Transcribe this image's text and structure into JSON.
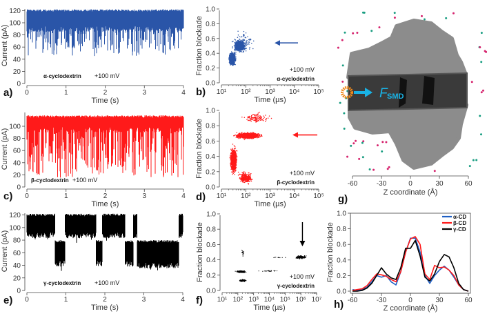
{
  "chart_data": [
    {
      "id": "a",
      "type": "line",
      "panel_label": "a)",
      "title": "",
      "xlabel": "Time (s)",
      "ylabel": "Current (pA)",
      "xlim": [
        0,
        4
      ],
      "ylim": [
        0,
        125
      ],
      "xticks": [
        "0",
        "1",
        "2",
        "3",
        "4"
      ],
      "xtick_values": [
        0,
        1,
        2,
        3,
        4
      ],
      "yticks": [
        "0",
        "20",
        "40",
        "60",
        "80",
        "100",
        "120"
      ],
      "ytick_values": [
        0,
        20,
        40,
        60,
        80,
        100,
        120
      ],
      "color": "#2a55a8",
      "annotations": {
        "molecule": "α-cyclodextrin",
        "voltage": "+100 mV"
      },
      "segments": [
        {
          "t": [
            0,
            4
          ],
          "level": "open",
          "range": [
            85,
            122
          ],
          "spike_min": 45,
          "spike_rate": 0.35
        }
      ]
    },
    {
      "id": "c",
      "type": "line",
      "panel_label": "c)",
      "xlabel": "Time (s)",
      "ylabel": "Current (pA)",
      "xlim": [
        0,
        4
      ],
      "ylim": [
        0,
        125
      ],
      "xticks": [
        "0",
        "1",
        "2",
        "3",
        "4"
      ],
      "xtick_values": [
        0,
        1,
        2,
        3,
        4
      ],
      "yticks": [
        "0",
        "20",
        "40",
        "60",
        "80",
        "100"
      ],
      "ytick_values": [
        0,
        20,
        40,
        60,
        80,
        100
      ],
      "color": "#ff1a1a",
      "annotations": {
        "molecule": "β-cyclodextrin",
        "voltage": "+100 mV"
      },
      "segments": [
        {
          "t": [
            0,
            4
          ],
          "level": "open",
          "range": [
            90,
            118
          ],
          "spike_min": 15,
          "spike_rate": 0.5
        }
      ]
    },
    {
      "id": "e",
      "type": "line",
      "panel_label": "e)",
      "xlabel": "Time (s)",
      "ylabel": "Current (pA)",
      "xlim": [
        0,
        4
      ],
      "ylim": [
        0,
        125
      ],
      "xticks": [
        "0",
        "1",
        "2",
        "3",
        "4"
      ],
      "xtick_values": [
        0,
        1,
        2,
        3,
        4
      ],
      "yticks": [
        "0",
        "20",
        "40",
        "60",
        "80",
        "100",
        "120"
      ],
      "ytick_values": [
        0,
        20,
        40,
        60,
        80,
        100,
        120
      ],
      "color": "#000000",
      "annotations": {
        "molecule": "γ-cyclodextrin",
        "voltage": "+100 mV"
      },
      "segments": [
        {
          "t": [
            0,
            0.72
          ],
          "level": "open",
          "range": [
            83,
            122
          ]
        },
        {
          "t": [
            0.72,
            0.98
          ],
          "level": "blocked",
          "range": [
            38,
            80
          ]
        },
        {
          "t": [
            0.98,
            1.77
          ],
          "level": "open",
          "range": [
            83,
            122
          ]
        },
        {
          "t": [
            1.77,
            1.93
          ],
          "level": "blocked",
          "range": [
            38,
            80
          ]
        },
        {
          "t": [
            1.93,
            2.52
          ],
          "level": "open",
          "range": [
            83,
            122
          ]
        },
        {
          "t": [
            2.52,
            2.73
          ],
          "level": "blocked",
          "range": [
            38,
            80
          ]
        },
        {
          "t": [
            2.73,
            2.83
          ],
          "level": "open",
          "range": [
            83,
            122
          ]
        },
        {
          "t": [
            2.83,
            3.9
          ],
          "level": "blocked",
          "range": [
            35,
            80
          ]
        },
        {
          "t": [
            3.9,
            4.0
          ],
          "level": "open",
          "range": [
            83,
            122
          ]
        }
      ]
    },
    {
      "id": "b",
      "type": "scatter",
      "panel_label": "b)",
      "xlabel": "Time (µs)",
      "ylabel": "Fraction blockade",
      "xscale": "log",
      "xlim_log10": [
        1,
        5
      ],
      "ylim": [
        0,
        1.0
      ],
      "xticks": [
        "10¹",
        "10²",
        "10³",
        "10⁴",
        "10⁵"
      ],
      "xtick_log10": [
        1,
        2,
        3,
        4,
        5
      ],
      "yticks": [
        "0.0",
        "0.2",
        "0.4",
        "0.6",
        "0.8",
        "1.0"
      ],
      "ytick_values": [
        0,
        0.2,
        0.4,
        0.6,
        0.8,
        1.0
      ],
      "color": "#2a55a8",
      "annotations": {
        "voltage": "+100 mV",
        "molecule": "α-cyclodextrin"
      },
      "arrow_at_fraction": 0.54,
      "clusters": [
        {
          "log10_time": 1.45,
          "log10_sd": 0.12,
          "fraction": 0.33,
          "sd": 0.08,
          "n": 900
        },
        {
          "log10_time": 1.75,
          "log10_sd": 0.2,
          "fraction": 0.5,
          "sd": 0.07,
          "n": 900
        },
        {
          "log10_time": 1.9,
          "log10_sd": 0.45,
          "fraction": 0.55,
          "sd": 0.15,
          "n": 90
        }
      ]
    },
    {
      "id": "d",
      "type": "scatter",
      "panel_label": "d)",
      "xlabel": "Time (µs)",
      "ylabel": "Fraction blockade",
      "xscale": "log",
      "xlim_log10": [
        1,
        5
      ],
      "ylim": [
        0,
        1.0
      ],
      "xticks": [
        "10¹",
        "10²",
        "10³",
        "10⁴",
        "10⁵"
      ],
      "xtick_log10": [
        1,
        2,
        3,
        4,
        5
      ],
      "yticks": [
        "0.0",
        "0.2",
        "0.4",
        "0.6",
        "0.8",
        "1.0"
      ],
      "ytick_values": [
        0,
        0.2,
        0.4,
        0.6,
        0.8,
        1.0
      ],
      "color": "#ff1a1a",
      "annotations": {
        "voltage": "+100 mV",
        "molecule": "β-cyclodextrin"
      },
      "arrow_at_fraction": 0.68,
      "clusters": [
        {
          "log10_time": 1.5,
          "log10_sd": 0.12,
          "fraction": 0.35,
          "sd": 0.14,
          "n": 1400
        },
        {
          "log10_time": 2.1,
          "log10_sd": 0.45,
          "fraction": 0.67,
          "sd": 0.035,
          "n": 1400
        },
        {
          "log10_time": 2.0,
          "log10_sd": 0.25,
          "fraction": 0.12,
          "sd": 0.07,
          "n": 300
        },
        {
          "log10_time": 2.4,
          "log10_sd": 0.5,
          "fraction": 0.9,
          "sd": 0.06,
          "n": 120
        }
      ]
    },
    {
      "id": "f",
      "type": "scatter",
      "panel_label": "f)",
      "xlabel": "Time (µs)",
      "ylabel": "Fraction blockade",
      "xscale": "log",
      "xlim_log10": [
        1,
        7
      ],
      "ylim": [
        0,
        1.0
      ],
      "xticks": [
        "10¹",
        "10²",
        "10³",
        "10⁴",
        "10⁵",
        "10⁶",
        "10⁷"
      ],
      "xtick_log10": [
        1,
        2,
        3,
        4,
        5,
        6,
        7
      ],
      "yticks": [
        "0.0",
        "0.2",
        "0.4",
        "0.6",
        "0.8",
        "1.0"
      ],
      "ytick_values": [
        0,
        0.2,
        0.4,
        0.6,
        0.8,
        1.0
      ],
      "color": "#000000",
      "annotations": {
        "voltage": "+100 mV",
        "molecule": "γ-cyclodextrin"
      },
      "arrow_at_log10_time": 6.1,
      "clusters": [
        {
          "log10_time": 2.2,
          "log10_sd": 0.25,
          "fraction": 0.245,
          "sd": 0.012,
          "n": 350
        },
        {
          "log10_time": 2.3,
          "log10_sd": 0.2,
          "fraction": 0.13,
          "sd": 0.012,
          "n": 120
        },
        {
          "log10_time": 2.3,
          "log10_sd": 0.12,
          "fraction": 0.5,
          "sd": 0.06,
          "n": 15
        },
        {
          "log10_time": 4.0,
          "log10_sd": 0.6,
          "fraction": 0.255,
          "sd": 0.008,
          "n": 25
        },
        {
          "log10_time": 6.0,
          "log10_sd": 0.35,
          "fraction": 0.435,
          "sd": 0.02,
          "n": 160
        },
        {
          "log10_time": 4.5,
          "log10_sd": 0.5,
          "fraction": 0.43,
          "sd": 0.01,
          "n": 10
        }
      ]
    },
    {
      "id": "g",
      "type": "diagram",
      "panel_label": "g)",
      "xlabel": "Z coordinate (Å)",
      "xlim": [
        -60,
        60
      ],
      "xticks": [
        "-60",
        "-30",
        "0",
        "30",
        "60"
      ],
      "xtick_values": [
        -60,
        -30,
        0,
        30,
        60
      ],
      "force_label": "F",
      "force_subscript": "SMD",
      "colors": {
        "protein": "#8c8c8c",
        "channel": "#3a3a3a",
        "ion_a": "#d6246e",
        "ion_b": "#1a9e82",
        "cyclodextrin": "#f08a1c",
        "force": "#19b3e6"
      }
    },
    {
      "id": "h",
      "type": "line",
      "panel_label": "h)",
      "xlabel": "Z coordinate (Å)",
      "ylabel": "Fraction blockade",
      "xlim": [
        -60,
        60
      ],
      "ylim": [
        0,
        1.0
      ],
      "xticks": [
        "-60",
        "-30",
        "0",
        "30",
        "60"
      ],
      "xtick_values": [
        -60,
        -30,
        0,
        30,
        60
      ],
      "yticks": [
        "0.0",
        "0.2",
        "0.4",
        "0.6",
        "0.8",
        "1.0"
      ],
      "ytick_values": [
        0,
        0.2,
        0.4,
        0.6,
        0.8,
        1.0
      ],
      "legend_position": "top-right",
      "x": [
        -60,
        -55,
        -50,
        -45,
        -40,
        -35,
        -30,
        -25,
        -20,
        -15,
        -10,
        -5,
        0,
        5,
        10,
        15,
        20,
        25,
        30,
        35,
        40,
        45,
        50,
        55,
        60
      ],
      "series": [
        {
          "name": "α-CD",
          "color": "#1f5fc4",
          "values": [
            0.02,
            0.01,
            0.02,
            0.05,
            0.12,
            0.2,
            0.18,
            0.2,
            0.12,
            0.08,
            0.25,
            0.5,
            0.68,
            0.68,
            0.5,
            0.2,
            0.1,
            0.2,
            0.27,
            0.32,
            0.27,
            0.18,
            0.08,
            0.02,
            0.0
          ]
        },
        {
          "name": "β-CD",
          "color": "#ff1a1a",
          "values": [
            0.01,
            0.02,
            0.03,
            0.07,
            0.15,
            0.22,
            0.21,
            0.19,
            0.15,
            0.12,
            0.25,
            0.5,
            0.67,
            0.7,
            0.6,
            0.22,
            0.15,
            0.33,
            0.3,
            0.31,
            0.27,
            0.2,
            0.08,
            0.02,
            0.0
          ]
        },
        {
          "name": "γ-CD",
          "color": "#000000",
          "values": [
            0.0,
            0.0,
            0.01,
            0.04,
            0.1,
            0.2,
            0.3,
            0.22,
            0.17,
            0.15,
            0.3,
            0.55,
            0.55,
            0.65,
            0.45,
            0.18,
            0.13,
            0.22,
            0.38,
            0.47,
            0.44,
            0.3,
            0.1,
            0.02,
            0.0
          ]
        }
      ]
    }
  ]
}
